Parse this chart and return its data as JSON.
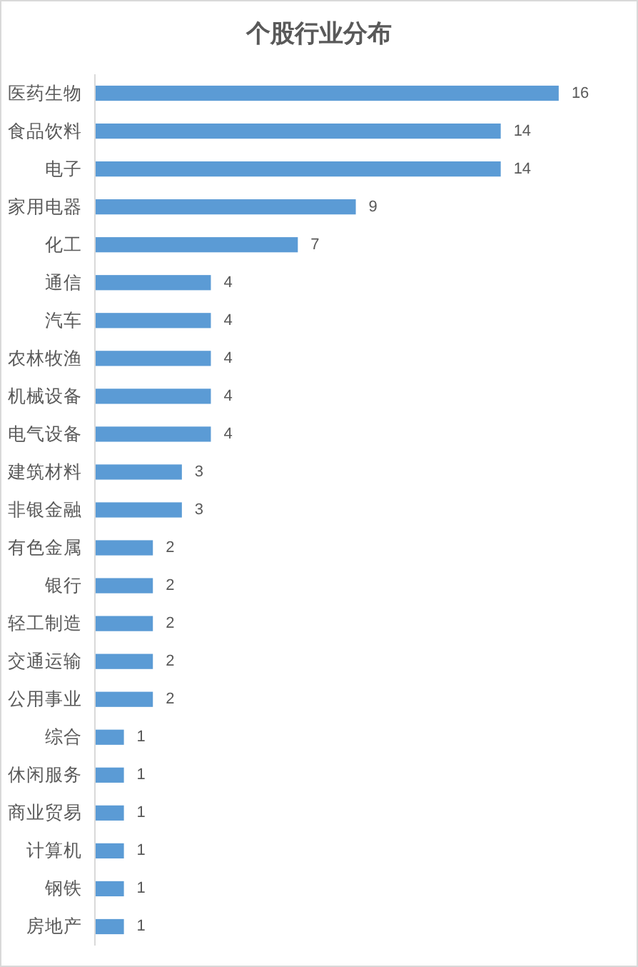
{
  "chart_data": {
    "type": "bar",
    "orientation": "horizontal",
    "title": "个股行业分布",
    "categories": [
      "医药生物",
      "食品饮料",
      "电子",
      "家用电器",
      "化工",
      "通信",
      "汽车",
      "农林牧渔",
      "机械设备",
      "电气设备",
      "建筑材料",
      "非银金融",
      "有色金属",
      "银行",
      "轻工制造",
      "交通运输",
      "公用事业",
      "综合",
      "休闲服务",
      "商业贸易",
      "计算机",
      "钢铁",
      "房地产"
    ],
    "values": [
      16,
      14,
      14,
      9,
      7,
      4,
      4,
      4,
      4,
      4,
      3,
      3,
      2,
      2,
      2,
      2,
      2,
      1,
      1,
      1,
      1,
      1,
      1
    ],
    "color": "#5b9bd5",
    "data_labels": true
  }
}
